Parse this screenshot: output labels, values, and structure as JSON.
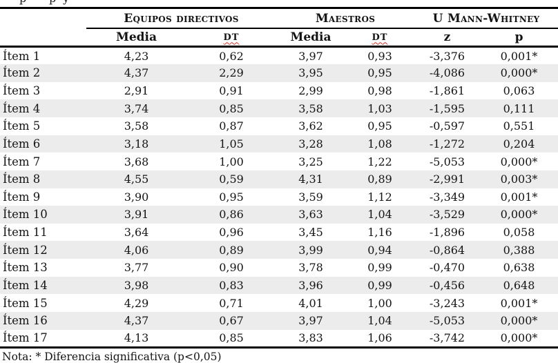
{
  "document": {
    "top_clipped_fragments": [
      "p",
      "p",
      "y"
    ],
    "footnote": "Nota: * Diferencia significativa (p<0,05)"
  },
  "table": {
    "groups": [
      {
        "label": "Equipos directivos"
      },
      {
        "label": "Maestros"
      },
      {
        "label": "U Mann-Whitney"
      }
    ],
    "sub_headers": [
      {
        "label": "Media"
      },
      {
        "label": "DT"
      },
      {
        "label": "Media"
      },
      {
        "label": "DT"
      },
      {
        "label": "z"
      },
      {
        "label": "p"
      }
    ],
    "rows": [
      {
        "item": "Ítem 1",
        "values": [
          "4,23",
          "0,62",
          "3,97",
          "0,93",
          "-3,376",
          "0,001*"
        ]
      },
      {
        "item": "Ítem 2",
        "values": [
          "4,37",
          "2,29",
          "3,95",
          "0,95",
          "-4,086",
          "0,000*"
        ]
      },
      {
        "item": "Ítem 3",
        "values": [
          "2,91",
          "0,91",
          "2,99",
          "0,98",
          "-1,861",
          "0,063"
        ]
      },
      {
        "item": "Ítem 4",
        "values": [
          "3,74",
          "0,85",
          "3,58",
          "1,03",
          "-1,595",
          "0,111"
        ]
      },
      {
        "item": "Ítem 5",
        "values": [
          "3,58",
          "0,87",
          "3,62",
          "0,95",
          "-0,597",
          "0,551"
        ]
      },
      {
        "item": "Ítem 6",
        "values": [
          "3,18",
          "1,05",
          "3,28",
          "1,08",
          "-1,272",
          "0,204"
        ]
      },
      {
        "item": "Ítem 7",
        "values": [
          "3,68",
          "1,00",
          "3,25",
          "1,22",
          "-5,053",
          "0,000*"
        ]
      },
      {
        "item": "Ítem 8",
        "values": [
          "4,55",
          "0,59",
          "4,31",
          "0,89",
          "-2,991",
          "0,003*"
        ]
      },
      {
        "item": "Ítem 9",
        "values": [
          "3,90",
          "0,95",
          "3,59",
          "1,12",
          "-3,349",
          "0,001*"
        ]
      },
      {
        "item": "Ítem 10",
        "values": [
          "3,91",
          "0,86",
          "3,63",
          "1,04",
          "-3,529",
          "0,000*"
        ]
      },
      {
        "item": "Ítem 11",
        "values": [
          "3,64",
          "0,96",
          "3,45",
          "1,16",
          "-1,896",
          "0,058"
        ]
      },
      {
        "item": "Ítem 12",
        "values": [
          "4,06",
          "0,89",
          "3,99",
          "0,94",
          "-0,864",
          "0,388"
        ]
      },
      {
        "item": "Ítem 13",
        "values": [
          "3,77",
          "0,90",
          "3,78",
          "0,99",
          "-0,470",
          "0,638"
        ]
      },
      {
        "item": "Ítem 14",
        "values": [
          "3,98",
          "0,83",
          "3,96",
          "0,99",
          "-0,456",
          "0,648"
        ]
      },
      {
        "item": "Ítem 15",
        "values": [
          "4,29",
          "0,71",
          "4,01",
          "1,00",
          "-3,243",
          "0,001*"
        ]
      },
      {
        "item": "Ítem 16",
        "values": [
          "4,37",
          "0,67",
          "3,97",
          "1,04",
          "-5,053",
          "0,000*"
        ]
      },
      {
        "item": "Ítem 17",
        "values": [
          "4,13",
          "0,85",
          "3,83",
          "1,06",
          "-3,742",
          "0,000*"
        ]
      }
    ],
    "colors": {
      "alt_row_bg": "#ececec",
      "rule": "#000000",
      "text": "#141414",
      "spellcheck_underline": "#d62a1e"
    }
  }
}
